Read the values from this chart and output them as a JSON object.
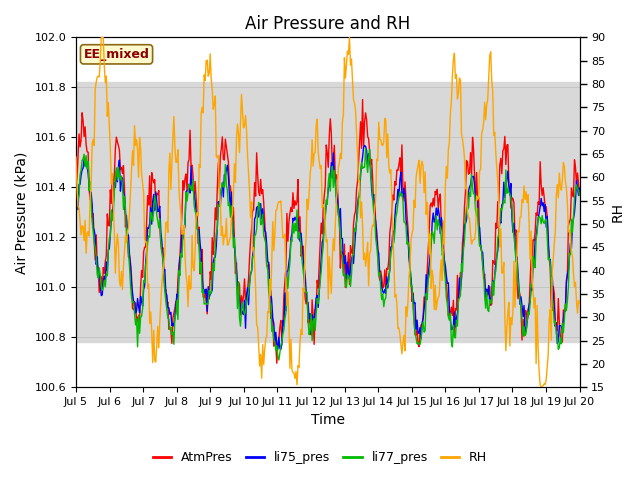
{
  "title": "Air Pressure and RH",
  "xlabel": "Time",
  "ylabel_left": "Air Pressure (kPa)",
  "ylabel_right": "RH",
  "ylim_left": [
    100.6,
    102.0
  ],
  "ylim_right": [
    15,
    90
  ],
  "yticks_left": [
    100.6,
    100.8,
    101.0,
    101.2,
    101.4,
    101.6,
    101.8,
    102.0
  ],
  "yticks_right": [
    15,
    20,
    25,
    30,
    35,
    40,
    45,
    50,
    55,
    60,
    65,
    70,
    75,
    80,
    85,
    90
  ],
  "xtick_labels": [
    "Jul 5",
    "Jul 6",
    "Jul 7",
    "Jul 8",
    "Jul 9",
    "Jul 10",
    "Jul 11",
    "Jul 12",
    "Jul 13",
    "Jul 14",
    "Jul 15",
    "Jul 16",
    "Jul 17",
    "Jul 18",
    "Jul 19",
    "Jul 20"
  ],
  "annotation_text": "EE_mixed",
  "annotation_color": "#8B0000",
  "annotation_bg": "#FFFACD",
  "annotation_edge": "#8B6914",
  "color_atm": "#FF0000",
  "color_li75": "#0000FF",
  "color_li77": "#00BB00",
  "color_rh": "#FFA500",
  "legend_labels": [
    "AtmPres",
    "li75_pres",
    "li77_pres",
    "RH"
  ],
  "bg_band_color": "#D8D8D8",
  "fig_bg": "#FFFFFF",
  "ax_bg": "#FFFFFF",
  "grid_color": "#BBBBBB",
  "title_fontsize": 12,
  "label_fontsize": 10,
  "tick_fontsize": 8,
  "legend_fontsize": 9
}
